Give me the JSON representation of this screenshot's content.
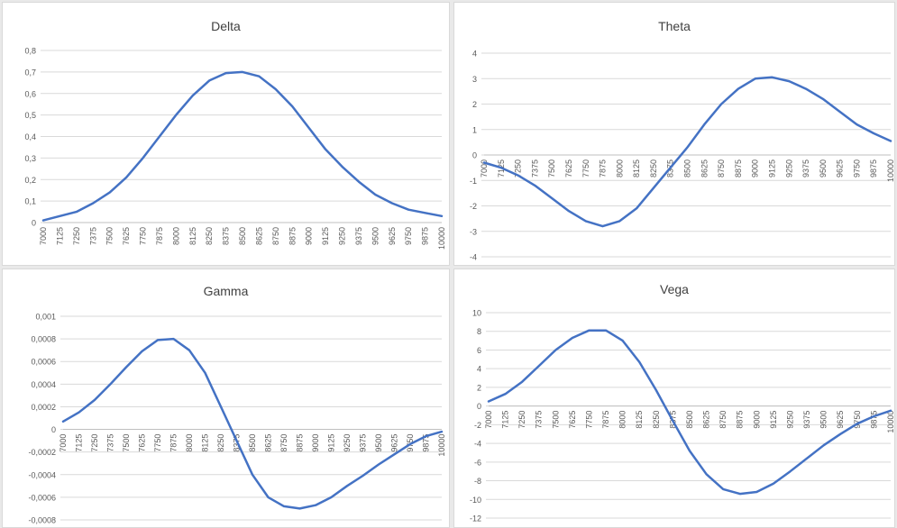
{
  "chart_data": [
    {
      "type": "line",
      "title": "Delta",
      "categories": [
        "7000",
        "7125",
        "7250",
        "7375",
        "7500",
        "7625",
        "7750",
        "7875",
        "8000",
        "8125",
        "8250",
        "8375",
        "8500",
        "8625",
        "8750",
        "8875",
        "9000",
        "9125",
        "9250",
        "9375",
        "9500",
        "9625",
        "9750",
        "9875",
        "10000"
      ],
      "y_ticks": [
        "0",
        "0,1",
        "0,2",
        "0,3",
        "0,4",
        "0,5",
        "0,6",
        "0,7",
        "0,8"
      ],
      "ylim": [
        0,
        0.8
      ],
      "grid": true,
      "line_color": "#4472c4",
      "series": [
        {
          "values": [
            0.01,
            0.03,
            0.05,
            0.09,
            0.14,
            0.21,
            0.3,
            0.4,
            0.5,
            0.59,
            0.66,
            0.695,
            0.7,
            0.68,
            0.62,
            0.54,
            0.44,
            0.34,
            0.26,
            0.19,
            0.13,
            0.09,
            0.06,
            0.045,
            0.03
          ]
        }
      ]
    },
    {
      "type": "line",
      "title": "Theta",
      "categories": [
        "7000",
        "7125",
        "7250",
        "7375",
        "7500",
        "7625",
        "7750",
        "7875",
        "8000",
        "8125",
        "8250",
        "8375",
        "8500",
        "8625",
        "8750",
        "8875",
        "9000",
        "9125",
        "9250",
        "9375",
        "9500",
        "9625",
        "9750",
        "9875",
        "10000"
      ],
      "y_ticks": [
        "-4",
        "-3",
        "-2",
        "-1",
        "0",
        "1",
        "2",
        "3",
        "4"
      ],
      "ylim": [
        -4,
        4
      ],
      "grid": true,
      "line_color": "#4472c4",
      "series": [
        {
          "values": [
            -0.3,
            -0.5,
            -0.8,
            -1.2,
            -1.7,
            -2.2,
            -2.6,
            -2.8,
            -2.6,
            -2.1,
            -1.3,
            -0.5,
            0.3,
            1.2,
            2.0,
            2.6,
            3.0,
            3.05,
            2.9,
            2.6,
            2.2,
            1.7,
            1.2,
            0.85,
            0.55
          ]
        }
      ]
    },
    {
      "type": "line",
      "title": "Gamma",
      "categories": [
        "7000",
        "7125",
        "7250",
        "7375",
        "7500",
        "7625",
        "7750",
        "7875",
        "8000",
        "8125",
        "8250",
        "8375",
        "8500",
        "8625",
        "8750",
        "8875",
        "9000",
        "9125",
        "9250",
        "9375",
        "9500",
        "9625",
        "9750",
        "9875",
        "10000"
      ],
      "y_ticks": [
        "-0,0008",
        "-0,0006",
        "-0,0004",
        "-0,0002",
        "0",
        "0,0002",
        "0,0004",
        "0,0006",
        "0,0008",
        "0,001"
      ],
      "ylim": [
        -0.0008,
        0.001
      ],
      "grid": true,
      "line_color": "#4472c4",
      "series": [
        {
          "values": [
            7e-05,
            0.00015,
            0.00026,
            0.0004,
            0.00055,
            0.00069,
            0.00079,
            0.0008,
            0.0007,
            0.0005,
            0.0002,
            -0.0001,
            -0.0004,
            -0.0006,
            -0.00068,
            -0.0007,
            -0.00067,
            -0.0006,
            -0.0005,
            -0.00041,
            -0.00031,
            -0.00022,
            -0.00013,
            -6e-05,
            -2e-05
          ]
        }
      ]
    },
    {
      "type": "line",
      "title": "Vega",
      "categories": [
        "7000",
        "7125",
        "7250",
        "7375",
        "7500",
        "7625",
        "7750",
        "7875",
        "8000",
        "8125",
        "8250",
        "8375",
        "8500",
        "8625",
        "8750",
        "8875",
        "9000",
        "9125",
        "9250",
        "9375",
        "9500",
        "9625",
        "9750",
        "9875",
        "10000"
      ],
      "y_ticks": [
        "-12",
        "-10",
        "-8",
        "-6",
        "-4",
        "-2",
        "0",
        "2",
        "4",
        "6",
        "8",
        "10"
      ],
      "ylim": [
        -12,
        10
      ],
      "grid": true,
      "line_color": "#4472c4",
      "series": [
        {
          "values": [
            0.5,
            1.3,
            2.6,
            4.3,
            6.0,
            7.3,
            8.1,
            8.1,
            7.0,
            4.7,
            1.7,
            -1.6,
            -4.8,
            -7.3,
            -8.9,
            -9.4,
            -9.2,
            -8.3,
            -7.0,
            -5.6,
            -4.2,
            -3.0,
            -1.9,
            -1.1,
            -0.5
          ]
        }
      ]
    }
  ]
}
